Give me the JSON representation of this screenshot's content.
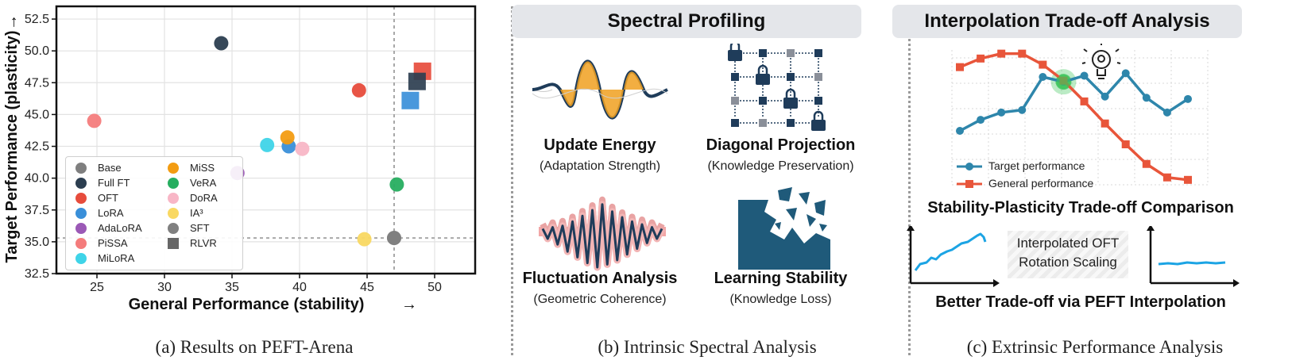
{
  "panel_a": {
    "caption": "(a) Results on PEFT-Arena"
  },
  "panel_b": {
    "caption": "(b) Intrinsic Spectral Analysis",
    "banner": "Spectral Profiling",
    "items": [
      {
        "title": "Update Energy",
        "subtitle": "(Adaptation Strength)"
      },
      {
        "title": "Diagonal Projection",
        "subtitle": "(Knowledge Preservation)"
      },
      {
        "title": "Fluctuation Analysis",
        "subtitle": "(Geometric Coherence)"
      },
      {
        "title": "Learning Stability",
        "subtitle": "(Knowledge Loss)"
      }
    ]
  },
  "panel_c": {
    "caption": "(c) Extrinsic Performance Analysis",
    "banner": "Interpolation Trade-off Analysis",
    "legend": [
      "Target performance",
      "General performance"
    ],
    "comparison_title": "Stability-Plasticity Trade-off Comparison",
    "box_text_line1": "Interpolated OFT",
    "box_text_line2": "Rotation Scaling",
    "bottom_title": "Better Trade-off via PEFT Interpolation",
    "colors": {
      "target": "#2e86ab",
      "general": "#e8553a",
      "highlight": "#3cc55a"
    }
  },
  "chart_data": [
    {
      "type": "scatter",
      "xlabel": "General Performance (stability)",
      "ylabel": "Target Performance (plasticity)",
      "xlabel_arrow": "→",
      "ylabel_arrow": "→",
      "xlim": [
        22,
        53
      ],
      "ylim": [
        32.5,
        53.5
      ],
      "xticks": [
        25,
        30,
        35,
        40,
        45,
        50
      ],
      "yticks": [
        32.5,
        35.0,
        37.5,
        40.0,
        42.5,
        45.0,
        47.5,
        50.0,
        52.5
      ],
      "grid": true,
      "legend_position": "lower-left",
      "reference_lines": {
        "x": 47.0,
        "y": 35.3
      },
      "series": [
        {
          "name": "Base",
          "marker": "circle",
          "color": "#7f7f7f",
          "points": [
            [
              47.0,
              35.3
            ]
          ]
        },
        {
          "name": "Full FT",
          "marker": "circle",
          "color": "#2c3e50",
          "points": [
            [
              34.2,
              50.6
            ]
          ]
        },
        {
          "name": "OFT",
          "marker": "circle",
          "color": "#e74c3c",
          "points": [
            [
              44.4,
              46.9
            ]
          ]
        },
        {
          "name": "LoRA",
          "marker": "circle",
          "color": "#3a8fd9",
          "points": [
            [
              39.2,
              42.5
            ]
          ]
        },
        {
          "name": "AdaLoRA",
          "marker": "circle",
          "color": "#9b59b6",
          "points": [
            [
              35.4,
              40.4
            ]
          ]
        },
        {
          "name": "PiSSA",
          "marker": "circle",
          "color": "#f47c7c",
          "points": [
            [
              24.8,
              44.5
            ]
          ]
        },
        {
          "name": "MiLoRA",
          "marker": "circle",
          "color": "#3fd4e8",
          "points": [
            [
              37.6,
              42.6
            ]
          ]
        },
        {
          "name": "MiSS",
          "marker": "circle",
          "color": "#f39c12",
          "points": [
            [
              39.1,
              43.2
            ]
          ]
        },
        {
          "name": "VeRA",
          "marker": "circle",
          "color": "#27ae60",
          "points": [
            [
              47.2,
              39.5
            ]
          ]
        },
        {
          "name": "DoRA",
          "marker": "circle",
          "color": "#f8b6c6",
          "points": [
            [
              40.2,
              42.3
            ]
          ]
        },
        {
          "name": "IA³",
          "marker": "circle",
          "color": "#f9d862",
          "points": [
            [
              44.8,
              35.2
            ]
          ]
        },
        {
          "name": "SFT",
          "marker": "circle",
          "color": "#808080",
          "points": [
            [
              47.0,
              35.3
            ]
          ]
        },
        {
          "name": "RLVR",
          "marker": "square",
          "color": "#666666",
          "points": []
        }
      ],
      "extra_markers": [
        {
          "marker": "square",
          "color": "#e74c3c",
          "x": 49.1,
          "y": 48.4
        },
        {
          "marker": "square",
          "color": "#2c3e50",
          "x": 48.7,
          "y": 47.6
        },
        {
          "marker": "square",
          "color": "#3a8fd9",
          "x": 48.2,
          "y": 46.1
        }
      ]
    },
    {
      "type": "line",
      "x": [
        1,
        2,
        3,
        4,
        5,
        6,
        7,
        8,
        9,
        10,
        11,
        12
      ],
      "series": [
        {
          "name": "Target performance",
          "values": [
            2.4,
            3.3,
            3.9,
            4.1,
            6.8,
            6.4,
            6.9,
            5.2,
            7.1,
            5.1,
            3.9,
            5.0
          ]
        },
        {
          "name": "General performance",
          "values": [
            7.6,
            8.3,
            8.7,
            8.7,
            7.8,
            6.5,
            4.8,
            3.0,
            1.3,
            -0.3,
            -1.4,
            -1.6
          ]
        }
      ],
      "highlight_x": 6,
      "grid": true,
      "legend_position": "lower-left"
    }
  ]
}
